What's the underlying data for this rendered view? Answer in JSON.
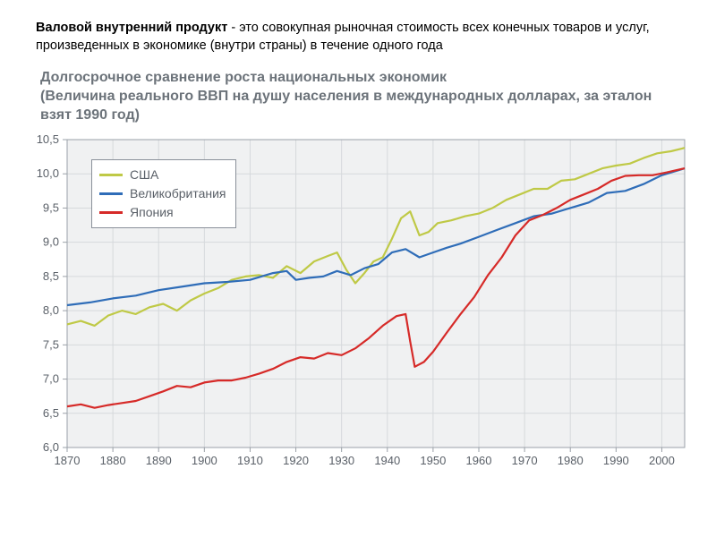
{
  "header": {
    "bold": "Валовой внутренний продукт",
    "rest": " - это совокупная рыночная стоимость всех конечных товаров и услуг, произведенных в экономике (внутри страны) в течение одного года"
  },
  "chart": {
    "type": "line",
    "title_line1": "Долгосрочное сравнение роста национальных экономик",
    "title_line2": "(Величина реального ВВП на душу населения в международных долларах, за эталон взят 1990 год)",
    "title_color": "#6c737a",
    "title_fontsize": 16,
    "background_color": "#f0f1f2",
    "grid_color": "#d6d9dc",
    "axis_color": "#9aa0a8",
    "tick_fontsize": 13,
    "xlim": [
      1870,
      2005
    ],
    "ylim": [
      6.0,
      10.5
    ],
    "ytick_step": 0.5,
    "xtick_step": 10,
    "y_ticks": [
      "6,0",
      "6,5",
      "7,0",
      "7,5",
      "8,0",
      "8,5",
      "9,0",
      "9,5",
      "10,0",
      "10,5"
    ],
    "x_ticks": [
      "1870",
      "1880",
      "1890",
      "1900",
      "1910",
      "1920",
      "1930",
      "1940",
      "1950",
      "1960",
      "1970",
      "1980",
      "1990",
      "2000"
    ],
    "line_width": 2.2,
    "series": [
      {
        "name": "США",
        "color": "#bfc946",
        "points": [
          [
            1870,
            7.8
          ],
          [
            1873,
            7.85
          ],
          [
            1876,
            7.78
          ],
          [
            1879,
            7.93
          ],
          [
            1882,
            8.0
          ],
          [
            1885,
            7.95
          ],
          [
            1888,
            8.05
          ],
          [
            1891,
            8.1
          ],
          [
            1894,
            8.0
          ],
          [
            1897,
            8.15
          ],
          [
            1900,
            8.25
          ],
          [
            1903,
            8.33
          ],
          [
            1906,
            8.45
          ],
          [
            1909,
            8.5
          ],
          [
            1912,
            8.52
          ],
          [
            1915,
            8.48
          ],
          [
            1918,
            8.65
          ],
          [
            1921,
            8.55
          ],
          [
            1924,
            8.72
          ],
          [
            1927,
            8.8
          ],
          [
            1929,
            8.85
          ],
          [
            1931,
            8.6
          ],
          [
            1933,
            8.4
          ],
          [
            1935,
            8.55
          ],
          [
            1937,
            8.72
          ],
          [
            1939,
            8.78
          ],
          [
            1941,
            9.05
          ],
          [
            1943,
            9.35
          ],
          [
            1945,
            9.45
          ],
          [
            1947,
            9.1
          ],
          [
            1949,
            9.15
          ],
          [
            1951,
            9.28
          ],
          [
            1954,
            9.32
          ],
          [
            1957,
            9.38
          ],
          [
            1960,
            9.42
          ],
          [
            1963,
            9.5
          ],
          [
            1966,
            9.62
          ],
          [
            1969,
            9.7
          ],
          [
            1972,
            9.78
          ],
          [
            1975,
            9.78
          ],
          [
            1978,
            9.9
          ],
          [
            1981,
            9.92
          ],
          [
            1984,
            10.0
          ],
          [
            1987,
            10.08
          ],
          [
            1990,
            10.12
          ],
          [
            1993,
            10.15
          ],
          [
            1996,
            10.23
          ],
          [
            1999,
            10.3
          ],
          [
            2002,
            10.33
          ],
          [
            2005,
            10.38
          ]
        ]
      },
      {
        "name": "Великобритания",
        "color": "#2f6db8",
        "points": [
          [
            1870,
            8.08
          ],
          [
            1875,
            8.12
          ],
          [
            1880,
            8.18
          ],
          [
            1885,
            8.22
          ],
          [
            1890,
            8.3
          ],
          [
            1895,
            8.35
          ],
          [
            1900,
            8.4
          ],
          [
            1905,
            8.42
          ],
          [
            1910,
            8.45
          ],
          [
            1915,
            8.55
          ],
          [
            1918,
            8.58
          ],
          [
            1920,
            8.45
          ],
          [
            1923,
            8.48
          ],
          [
            1926,
            8.5
          ],
          [
            1929,
            8.58
          ],
          [
            1932,
            8.52
          ],
          [
            1935,
            8.62
          ],
          [
            1938,
            8.68
          ],
          [
            1941,
            8.85
          ],
          [
            1944,
            8.9
          ],
          [
            1947,
            8.78
          ],
          [
            1950,
            8.85
          ],
          [
            1953,
            8.92
          ],
          [
            1956,
            8.98
          ],
          [
            1960,
            9.08
          ],
          [
            1964,
            9.18
          ],
          [
            1968,
            9.28
          ],
          [
            1972,
            9.38
          ],
          [
            1976,
            9.42
          ],
          [
            1980,
            9.5
          ],
          [
            1984,
            9.58
          ],
          [
            1988,
            9.72
          ],
          [
            1992,
            9.75
          ],
          [
            1996,
            9.85
          ],
          [
            2000,
            9.98
          ],
          [
            2005,
            10.08
          ]
        ]
      },
      {
        "name": "Япония",
        "color": "#d62a28",
        "points": [
          [
            1870,
            6.6
          ],
          [
            1873,
            6.63
          ],
          [
            1876,
            6.58
          ],
          [
            1879,
            6.62
          ],
          [
            1882,
            6.65
          ],
          [
            1885,
            6.68
          ],
          [
            1888,
            6.75
          ],
          [
            1891,
            6.82
          ],
          [
            1894,
            6.9
          ],
          [
            1897,
            6.88
          ],
          [
            1900,
            6.95
          ],
          [
            1903,
            6.98
          ],
          [
            1906,
            6.98
          ],
          [
            1909,
            7.02
          ],
          [
            1912,
            7.08
          ],
          [
            1915,
            7.15
          ],
          [
            1918,
            7.25
          ],
          [
            1921,
            7.32
          ],
          [
            1924,
            7.3
          ],
          [
            1927,
            7.38
          ],
          [
            1930,
            7.35
          ],
          [
            1933,
            7.45
          ],
          [
            1936,
            7.6
          ],
          [
            1939,
            7.78
          ],
          [
            1942,
            7.92
          ],
          [
            1944,
            7.95
          ],
          [
            1945,
            7.55
          ],
          [
            1946,
            7.18
          ],
          [
            1948,
            7.25
          ],
          [
            1950,
            7.4
          ],
          [
            1953,
            7.68
          ],
          [
            1956,
            7.95
          ],
          [
            1959,
            8.2
          ],
          [
            1962,
            8.52
          ],
          [
            1965,
            8.78
          ],
          [
            1968,
            9.1
          ],
          [
            1971,
            9.32
          ],
          [
            1974,
            9.4
          ],
          [
            1977,
            9.5
          ],
          [
            1980,
            9.62
          ],
          [
            1983,
            9.7
          ],
          [
            1986,
            9.78
          ],
          [
            1989,
            9.9
          ],
          [
            1992,
            9.97
          ],
          [
            1995,
            9.98
          ],
          [
            1998,
            9.98
          ],
          [
            2001,
            10.02
          ],
          [
            2005,
            10.08
          ]
        ]
      }
    ]
  }
}
